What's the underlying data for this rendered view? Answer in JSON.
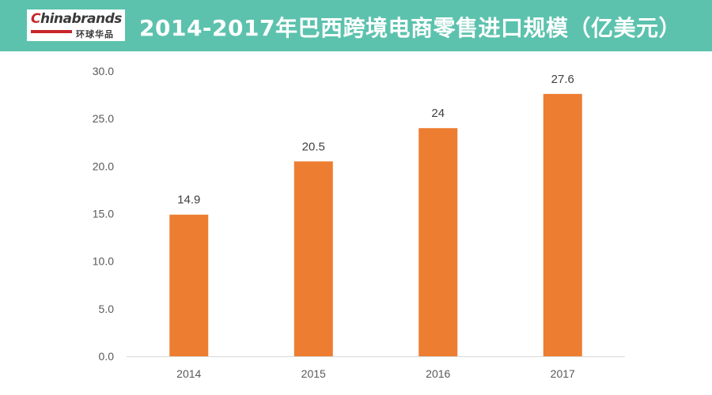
{
  "header": {
    "logo_word_a": "C",
    "logo_word_b": "hinabrands",
    "logo_cn": "环球华品",
    "title": "2014-2017年巴西跨境电商零售进口规模（亿美元）",
    "bg_color": "#5cc2ad"
  },
  "chart_data": {
    "type": "bar",
    "title": "2014-2017年巴西跨境电商零售进口规模（亿美元）",
    "categories": [
      "2014",
      "2015",
      "2016",
      "2017"
    ],
    "values": [
      14.9,
      20.5,
      24,
      27.6
    ],
    "data_labels": [
      "14.9",
      "20.5",
      "24",
      "27.6"
    ],
    "ylim": [
      0,
      30
    ],
    "yticks": [
      "0.0",
      "5.0",
      "10.0",
      "15.0",
      "20.0",
      "25.0",
      "30.0"
    ],
    "xlabel": "",
    "ylabel": "",
    "grid": false,
    "bar_color": "#ed7d31"
  }
}
